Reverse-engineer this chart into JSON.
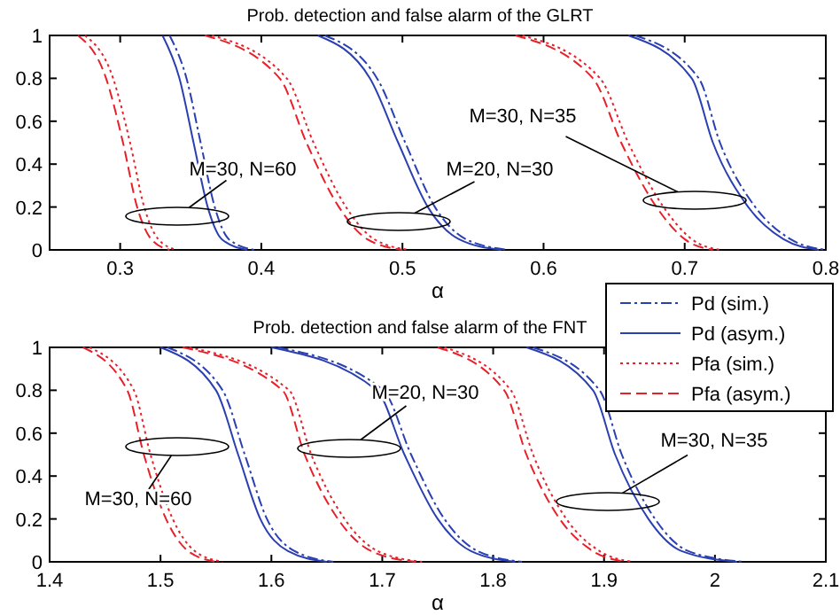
{
  "chart_data": [
    {
      "type": "line",
      "title": "Prob. detection and false alarm of the GLRT",
      "xlabel": "α",
      "xlim": [
        0.25,
        0.8
      ],
      "xticks": [
        0.3,
        0.4,
        0.5,
        0.6,
        0.7,
        0.8
      ],
      "ylim": [
        0,
        1
      ],
      "yticks": [
        0,
        0.2,
        0.4,
        0.6,
        0.8,
        1
      ],
      "grid": false,
      "legend": false,
      "marker": "none",
      "series": [
        {
          "color": "#2a3fb0",
          "line_style": "dashdot",
          "x": [
            0.335,
            0.347,
            0.357,
            0.367,
            0.377,
            0.395,
            null,
            0.445,
            0.482,
            0.502,
            0.523,
            0.545,
            0.575,
            null,
            0.665,
            0.71,
            0.725,
            0.75,
            0.775,
            0.8
          ],
          "values": [
            1,
            0.8,
            0.5,
            0.2,
            0.05,
            0,
            null,
            1,
            0.8,
            0.5,
            0.2,
            0.05,
            0,
            null,
            1,
            0.8,
            0.5,
            0.2,
            0.05,
            0
          ]
        },
        {
          "color": "#2a3fb0",
          "line_style": "solid",
          "x": [
            0.33,
            0.342,
            0.352,
            0.362,
            0.372,
            0.39,
            null,
            0.44,
            0.477,
            0.497,
            0.518,
            0.54,
            0.57,
            null,
            0.66,
            0.705,
            0.72,
            0.745,
            0.77,
            0.795
          ],
          "values": [
            1,
            0.8,
            0.5,
            0.2,
            0.05,
            0,
            null,
            1,
            0.8,
            0.5,
            0.2,
            0.05,
            0,
            null,
            1,
            0.8,
            0.5,
            0.2,
            0.05,
            0
          ]
        },
        {
          "color": "#e8202a",
          "line_style": "dotted",
          "x": [
            0.275,
            0.295,
            0.307,
            0.317,
            0.327,
            0.34,
            null,
            0.365,
            0.418,
            0.437,
            0.46,
            0.48,
            0.505,
            null,
            0.585,
            0.64,
            0.66,
            0.685,
            0.705,
            0.725
          ],
          "values": [
            1,
            0.8,
            0.5,
            0.2,
            0.05,
            0,
            null,
            1,
            0.8,
            0.5,
            0.2,
            0.05,
            0,
            null,
            1,
            0.8,
            0.5,
            0.2,
            0.05,
            0
          ]
        },
        {
          "color": "#e8202a",
          "line_style": "dashed",
          "x": [
            0.27,
            0.29,
            0.302,
            0.312,
            0.322,
            0.335,
            null,
            0.36,
            0.413,
            0.432,
            0.455,
            0.475,
            0.5,
            null,
            0.58,
            0.635,
            0.655,
            0.68,
            0.7,
            0.72
          ],
          "values": [
            1,
            0.8,
            0.5,
            0.2,
            0.05,
            0,
            null,
            1,
            0.8,
            0.5,
            0.2,
            0.05,
            0,
            null,
            1,
            0.8,
            0.5,
            0.2,
            0.05,
            0
          ]
        }
      ],
      "annotations": [
        "M=30, N=60",
        "M=20, N=30",
        "M=30, N=35"
      ]
    },
    {
      "type": "line",
      "title": "Prob. detection and false alarm of the FNT",
      "xlabel": "α",
      "xlim": [
        1.4,
        2.1
      ],
      "xticks": [
        1.4,
        1.5,
        1.6,
        1.7,
        1.8,
        1.9,
        2,
        2.1
      ],
      "ylim": [
        0,
        1
      ],
      "yticks": [
        0,
        0.2,
        0.4,
        0.6,
        0.8,
        1
      ],
      "grid": false,
      "legend": "top right",
      "marker": "none",
      "series": [
        {
          "name": "Pd (sim.)",
          "color": "#2a3fb0",
          "line_style": "dashdot",
          "x": [
            1.506,
            1.556,
            1.576,
            1.596,
            1.621,
            1.656,
            null,
            1.606,
            1.701,
            1.726,
            1.756,
            1.786,
            1.826,
            null,
            1.836,
            1.896,
            1.916,
            1.946,
            1.976,
            2.026
          ],
          "values": [
            1,
            0.8,
            0.5,
            0.2,
            0.05,
            0,
            null,
            1,
            0.8,
            0.5,
            0.2,
            0.05,
            0,
            null,
            1,
            0.8,
            0.5,
            0.2,
            0.05,
            0
          ]
        },
        {
          "name": "Pd (asym.)",
          "color": "#2a3fb0",
          "line_style": "solid",
          "x": [
            1.5,
            1.55,
            1.57,
            1.59,
            1.615,
            1.65,
            null,
            1.6,
            1.695,
            1.72,
            1.75,
            1.78,
            1.82,
            null,
            1.83,
            1.89,
            1.91,
            1.94,
            1.97,
            2.02
          ],
          "values": [
            1,
            0.8,
            0.5,
            0.2,
            0.05,
            0,
            null,
            1,
            0.8,
            0.5,
            0.2,
            0.05,
            0,
            null,
            1,
            0.8,
            0.5,
            0.2,
            0.05,
            0
          ]
        },
        {
          "name": "Pfa (sim.)",
          "color": "#e8202a",
          "line_style": "dotted",
          "x": [
            1.436,
            1.476,
            1.491,
            1.511,
            1.531,
            1.556,
            null,
            1.526,
            1.616,
            1.636,
            1.666,
            1.696,
            1.736,
            null,
            1.756,
            1.816,
            1.836,
            1.866,
            1.896,
            1.926
          ],
          "values": [
            1,
            0.8,
            0.5,
            0.2,
            0.05,
            0,
            null,
            1,
            0.8,
            0.5,
            0.2,
            0.05,
            0,
            null,
            1,
            0.8,
            0.5,
            0.2,
            0.05,
            0
          ]
        },
        {
          "name": "Pfa (asym.)",
          "color": "#e8202a",
          "line_style": "dashed",
          "x": [
            1.43,
            1.47,
            1.485,
            1.505,
            1.525,
            1.55,
            null,
            1.52,
            1.61,
            1.63,
            1.66,
            1.69,
            1.73,
            null,
            1.75,
            1.81,
            1.83,
            1.86,
            1.89,
            1.92
          ],
          "values": [
            1,
            0.8,
            0.5,
            0.2,
            0.05,
            0,
            null,
            1,
            0.8,
            0.5,
            0.2,
            0.05,
            0,
            null,
            1,
            0.8,
            0.5,
            0.2,
            0.05,
            0
          ]
        }
      ],
      "annotations": [
        "M=30, N=60",
        "M=20, N=30",
        "M=30, N=35"
      ]
    }
  ]
}
